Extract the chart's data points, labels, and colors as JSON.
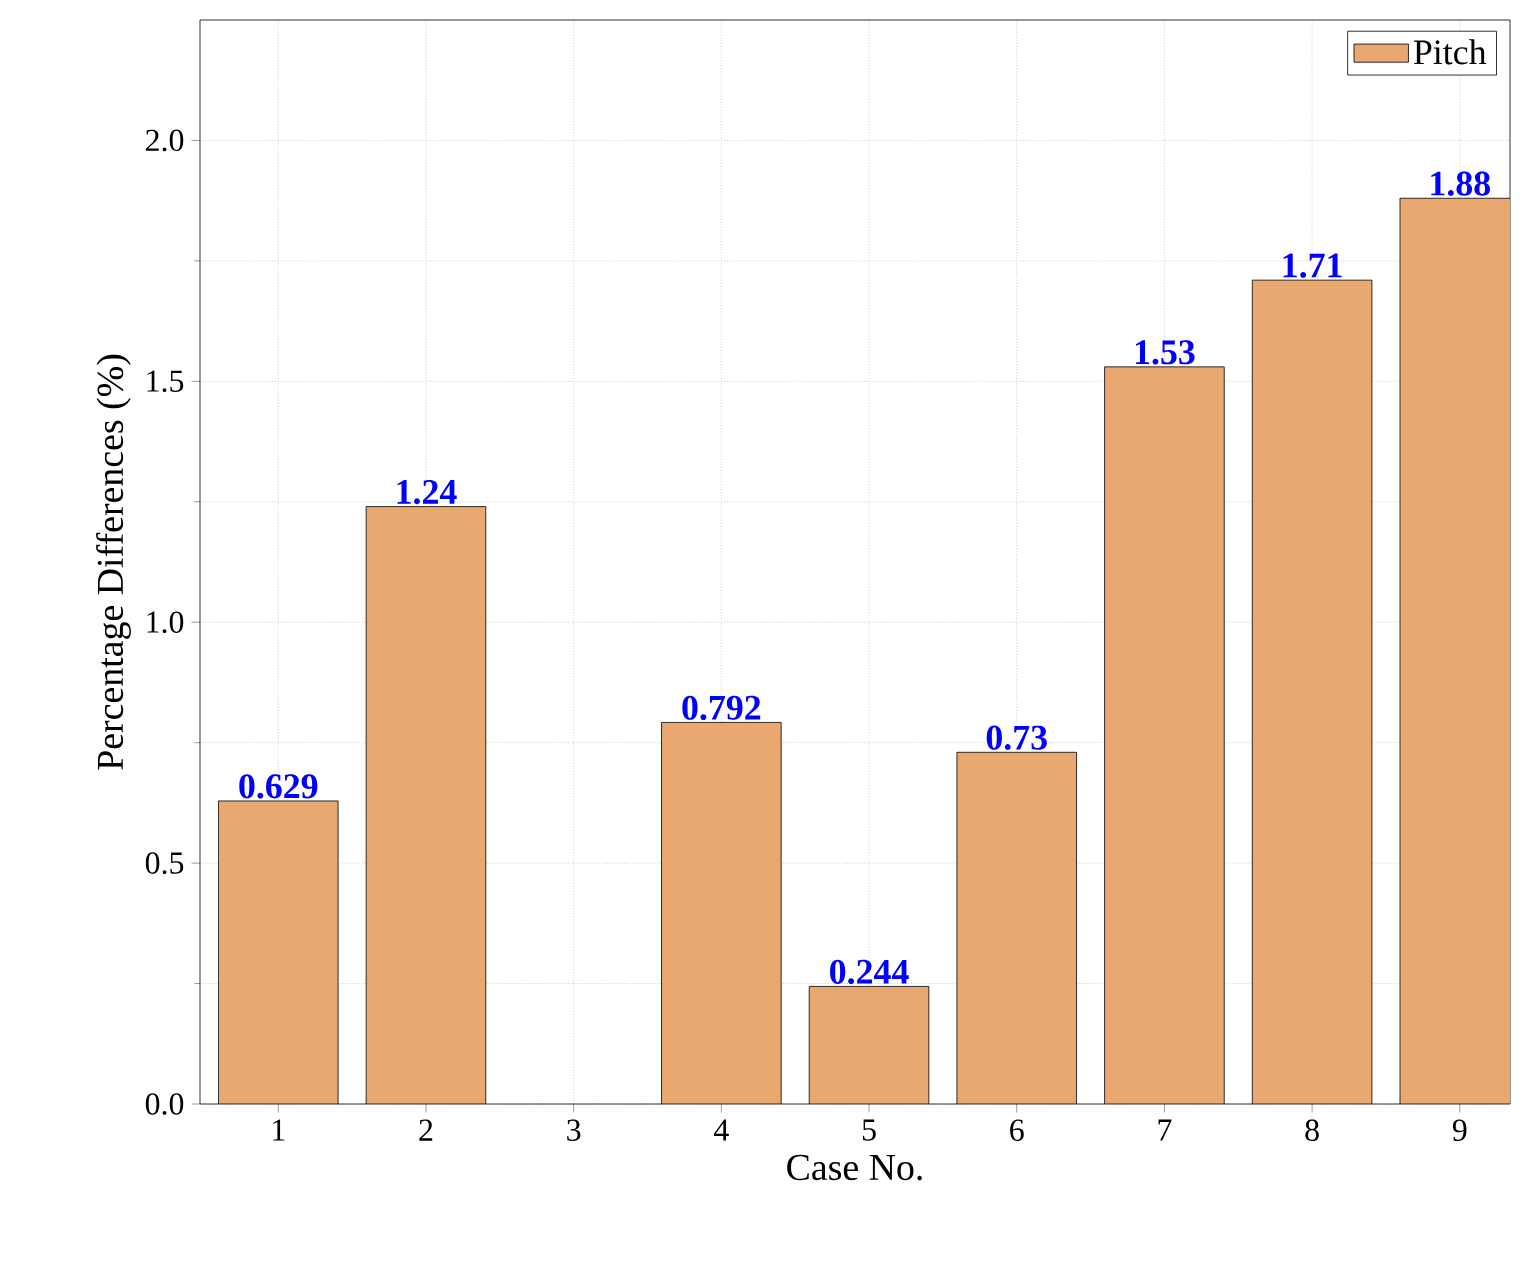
{
  "chart_data": {
    "type": "bar",
    "xlabel": "Case No.",
    "ylabel": "Percentage Differences (%)",
    "categories": [
      "1",
      "2",
      "3",
      "4",
      "5",
      "6",
      "7",
      "8",
      "9"
    ],
    "series": [
      {
        "name": "Pitch",
        "color": "#e8a870",
        "values": [
          0.629,
          1.24,
          null,
          0.792,
          0.244,
          0.73,
          1.53,
          1.71,
          1.88
        ]
      }
    ],
    "ylim": [
      0,
      2.25
    ],
    "yticks": [
      {
        "value": 0,
        "label": "0.0"
      },
      0.5,
      {
        "value": 1,
        "label": "1.0"
      },
      1.5,
      {
        "value": 2,
        "label": "2.0"
      }
    ],
    "grid": true,
    "legend": "top right",
    "data_labels": true
  }
}
